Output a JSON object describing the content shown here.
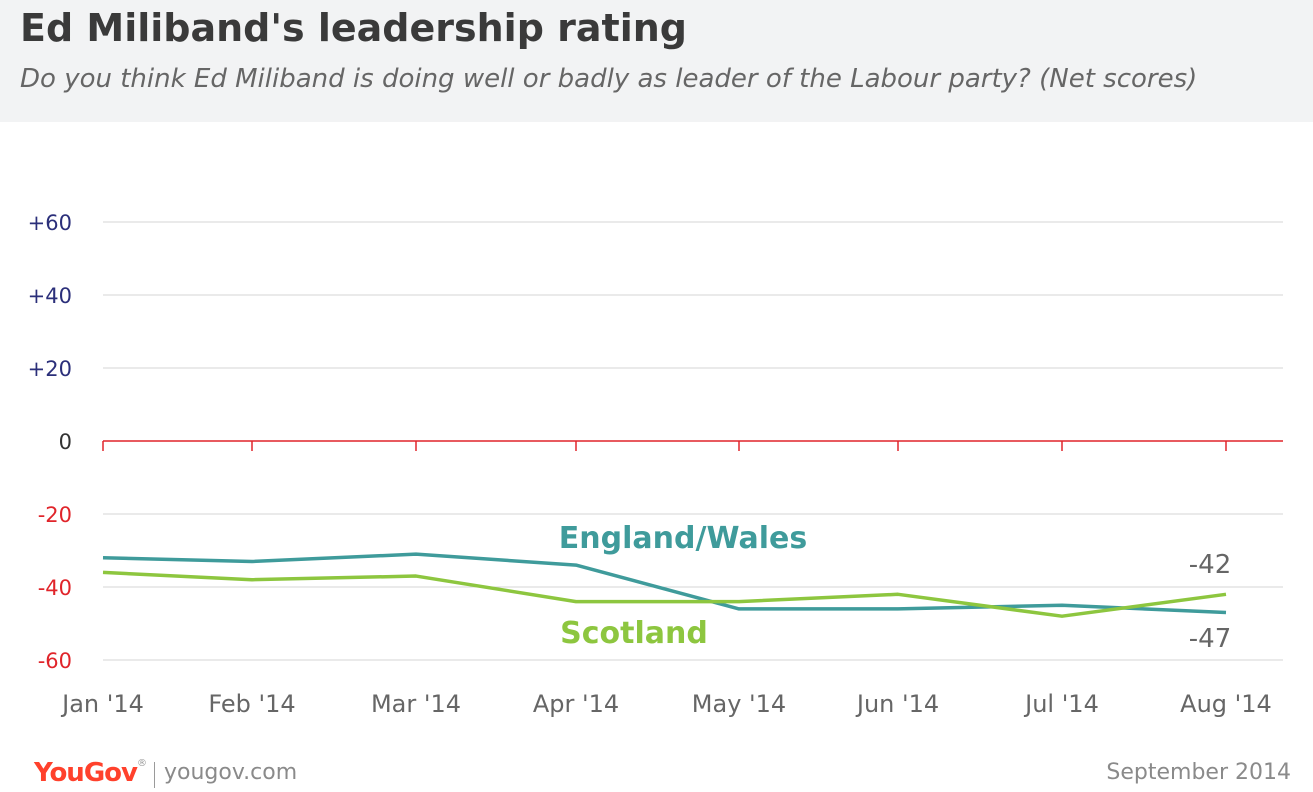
{
  "header": {
    "title": "Ed Miliband's leadership rating",
    "subtitle": "Do you think Ed Miliband is doing well or badly as leader of the Labour party? (Net scores)"
  },
  "footer": {
    "logo": "YouGov",
    "url": "yougov.com",
    "date": "September 2014"
  },
  "colors": {
    "england_wales": "#3f9b9b",
    "scotland": "#8dc63f",
    "positive_tick": "#2b2f7a",
    "negative_tick": "#e0242a",
    "zero_line": "#e0242a",
    "grid": "#d6d6d6",
    "end_label": "#666666"
  },
  "chart_data": {
    "type": "line",
    "title": "Ed Miliband's leadership rating",
    "xlabel": "",
    "ylabel": "",
    "categories": [
      "Jan '14",
      "Feb '14",
      "Mar '14",
      "Apr '14",
      "May '14",
      "Jun '14",
      "Jul '14",
      "Aug '14"
    ],
    "ylim": [
      -60,
      60
    ],
    "yticks": [
      "+60",
      "+40",
      "+20",
      "0",
      "-20",
      "-40",
      "-60"
    ],
    "ytick_values": [
      60,
      40,
      20,
      0,
      -20,
      -40,
      -60
    ],
    "grid": true,
    "series": [
      {
        "name": "England/Wales",
        "values": [
          -32,
          -33,
          -31,
          -34,
          -46,
          -46,
          -45,
          -47
        ],
        "end_label": "-47"
      },
      {
        "name": "Scotland",
        "values": [
          -36,
          -38,
          -37,
          -44,
          -44,
          -42,
          -48,
          -42
        ],
        "end_label": "-42"
      }
    ]
  }
}
